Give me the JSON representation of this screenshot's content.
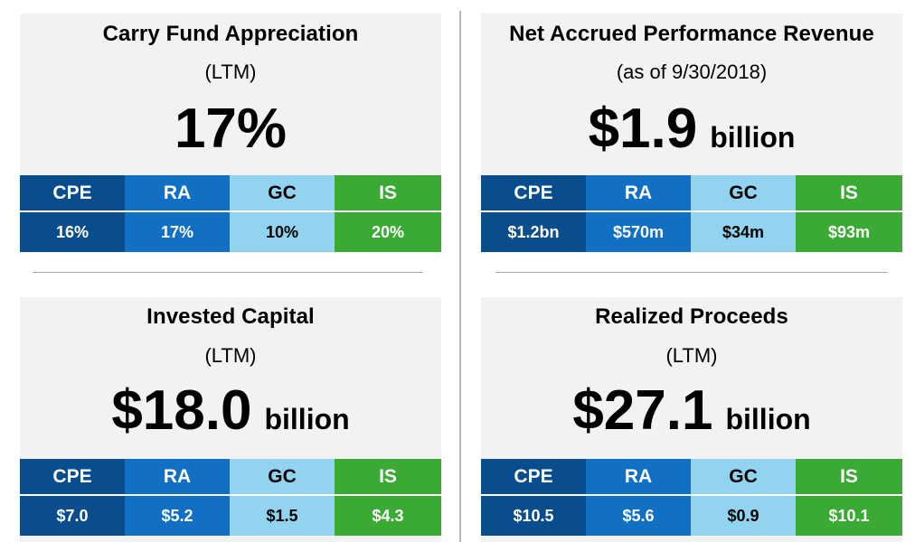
{
  "colors": {
    "CPE": "#0a4d8c",
    "RA": "#1170c3",
    "GC": "#92d3f0",
    "IS": "#3aaa35",
    "panel_bg": "#f2f2f2"
  },
  "segments": [
    "CPE",
    "RA",
    "GC",
    "IS"
  ],
  "panels": [
    {
      "title": "Carry Fund Appreciation",
      "subtitle": "(LTM)",
      "value": "17%",
      "unit": "",
      "segment_values": [
        "16%",
        "17%",
        "10%",
        "20%"
      ]
    },
    {
      "title": "Net Accrued Performance Revenue",
      "subtitle": "(as of 9/30/2018)",
      "value": "$1.9",
      "unit": "billion",
      "segment_values": [
        "$1.2bn",
        "$570m",
        "$34m",
        "$93m"
      ]
    },
    {
      "title": "Invested Capital",
      "subtitle": "(LTM)",
      "value": "$18.0",
      "unit": "billion",
      "segment_values": [
        "$7.0",
        "$5.2",
        "$1.5",
        "$4.3"
      ]
    },
    {
      "title": "Realized Proceeds",
      "subtitle": "(LTM)",
      "value": "$27.1",
      "unit": "billion",
      "segment_values": [
        "$10.5",
        "$5.6",
        "$0.9",
        "$10.1"
      ]
    }
  ]
}
